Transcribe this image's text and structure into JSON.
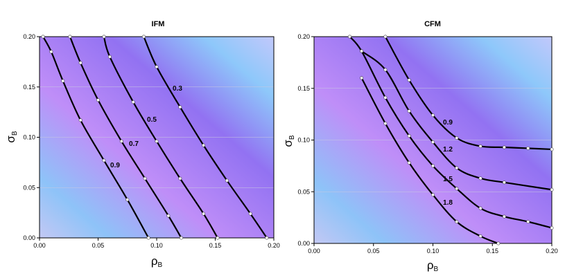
{
  "chart_data": [
    {
      "type": "line",
      "title": "IFM",
      "xlabel": "ρB",
      "ylabel": "σB",
      "xlim": [
        0,
        0.2
      ],
      "ylim": [
        0,
        0.2
      ],
      "xticks": [
        "0.00",
        "0.05",
        "0.10",
        "0.15",
        "0.20"
      ],
      "yticks": [
        "0.00",
        "0.05",
        "0.10",
        "0.15",
        "0.20"
      ],
      "grid": "horizontal",
      "series": [
        {
          "name": "0.3",
          "x": [
            0.089,
            0.1,
            0.12,
            0.14,
            0.16,
            0.18,
            0.194
          ],
          "y": [
            0.2,
            0.17,
            0.13,
            0.092,
            0.057,
            0.024,
            0.0
          ]
        },
        {
          "name": "0.5",
          "x": [
            0.055,
            0.06,
            0.08,
            0.1,
            0.12,
            0.14,
            0.152
          ],
          "y": [
            0.2,
            0.18,
            0.135,
            0.096,
            0.059,
            0.024,
            0.0
          ]
        },
        {
          "name": "0.7",
          "x": [
            0.026,
            0.035,
            0.05,
            0.07,
            0.09,
            0.11,
            0.121
          ],
          "y": [
            0.2,
            0.174,
            0.137,
            0.096,
            0.059,
            0.022,
            0.0
          ]
        },
        {
          "name": "0.9",
          "x": [
            0.003,
            0.01,
            0.02,
            0.035,
            0.055,
            0.075,
            0.093
          ],
          "y": [
            0.2,
            0.185,
            0.156,
            0.117,
            0.077,
            0.038,
            0.0
          ]
        }
      ]
    },
    {
      "type": "line",
      "title": "CFM",
      "xlabel": "ρB",
      "ylabel": "σB",
      "xlim": [
        0,
        0.2
      ],
      "ylim": [
        0,
        0.2
      ],
      "xticks": [
        "0.00",
        "0.05",
        "0.10",
        "0.15",
        "0.20"
      ],
      "yticks": [
        "0.00",
        "0.05",
        "0.10",
        "0.15",
        "0.20"
      ],
      "grid": "horizontal",
      "series": [
        {
          "name": "0.9",
          "x": [
            0.06,
            0.08,
            0.1,
            0.12,
            0.14,
            0.16,
            0.18,
            0.2
          ],
          "y": [
            0.2,
            0.158,
            0.124,
            0.102,
            0.094,
            0.093,
            0.092,
            0.091
          ]
        },
        {
          "name": "1.2",
          "x": [
            0.04,
            0.06,
            0.08,
            0.1,
            0.12,
            0.14,
            0.16,
            0.2
          ],
          "y": [
            0.186,
            0.168,
            0.128,
            0.098,
            0.073,
            0.063,
            0.059,
            0.052
          ]
        },
        {
          "name": "1.5",
          "x": [
            0.03,
            0.04,
            0.06,
            0.08,
            0.1,
            0.12,
            0.14,
            0.16,
            0.18,
            0.2
          ],
          "y": [
            0.2,
            0.186,
            0.141,
            0.104,
            0.075,
            0.053,
            0.034,
            0.026,
            0.021,
            0.015
          ]
        },
        {
          "name": "1.8",
          "x": [
            0.04,
            0.06,
            0.08,
            0.1,
            0.12,
            0.14,
            0.155
          ],
          "y": [
            0.16,
            0.116,
            0.078,
            0.047,
            0.021,
            0.007,
            0.0
          ]
        }
      ]
    }
  ]
}
